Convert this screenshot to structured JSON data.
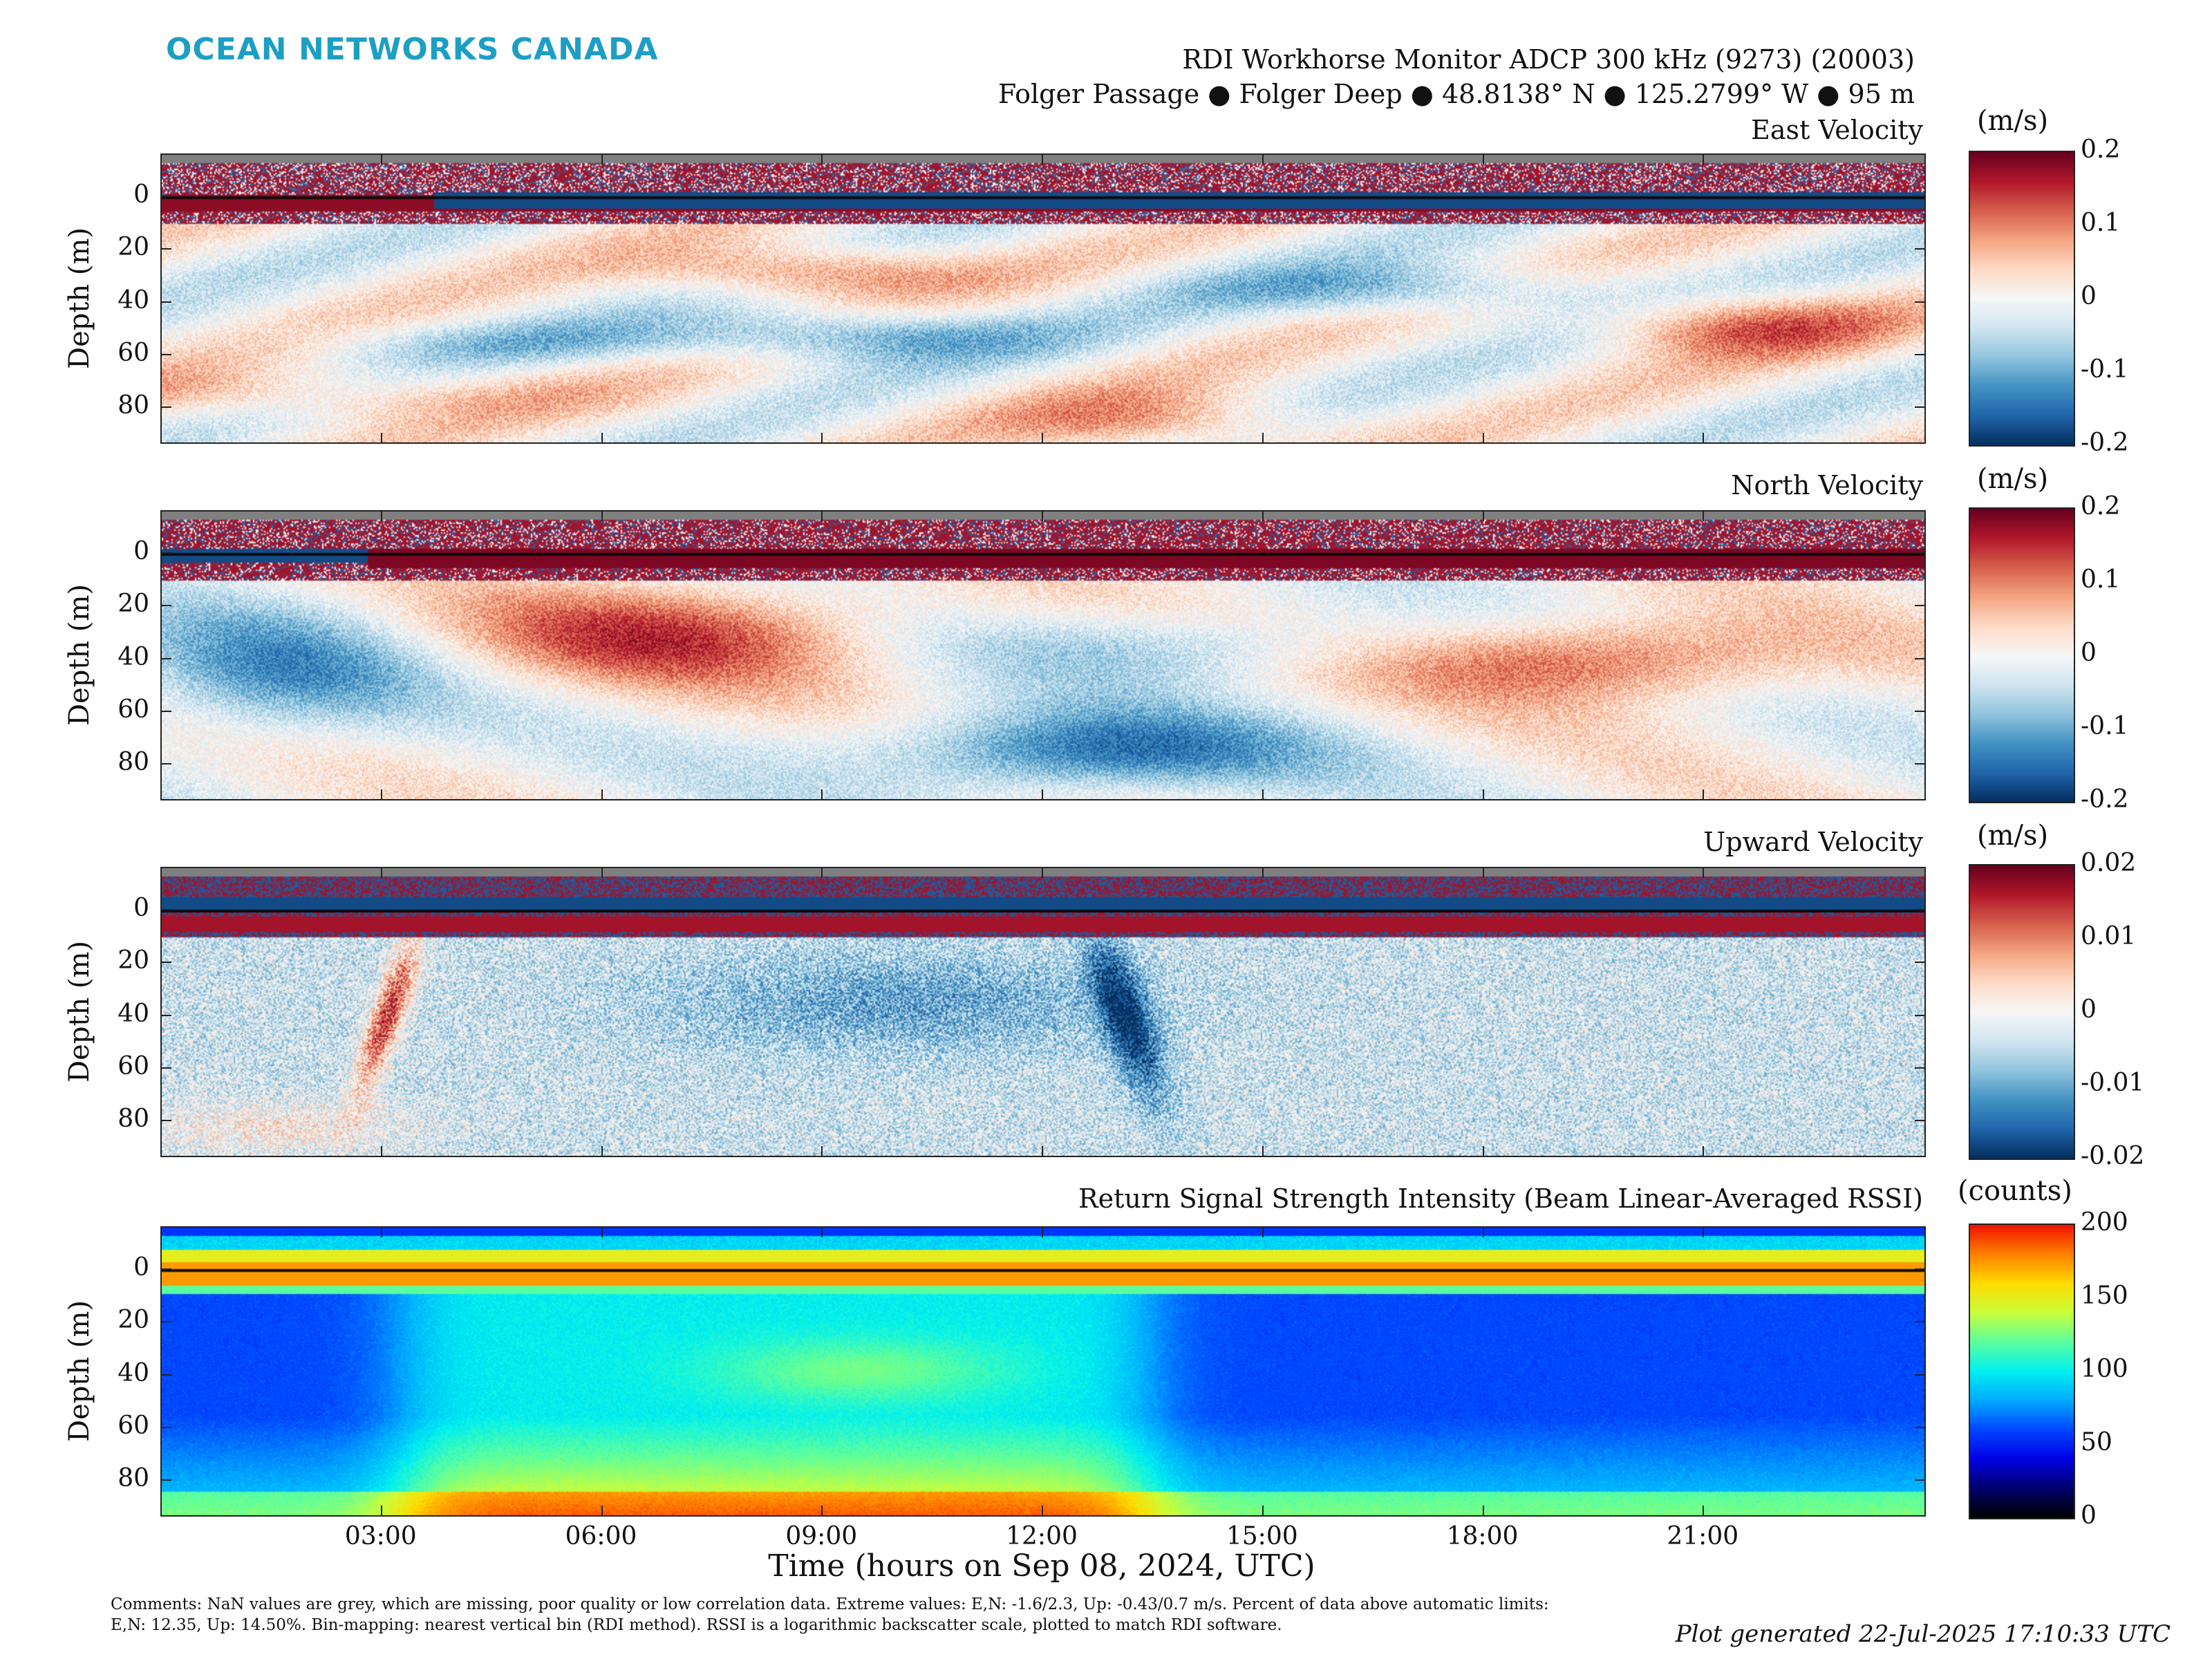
{
  "brand": "OCEAN NETWORKS CANADA",
  "header": {
    "line1": "RDI Workhorse Monitor ADCP 300 kHz (9273) (20003)",
    "line2": "Folger Passage ● Folger Deep ● 48.8138° N ● 125.2799° W ● 95 m"
  },
  "xlabel": "Time (hours on Sep 08, 2024, UTC)",
  "comments": "Comments: NaN values are grey, which are missing, poor quality or low correlation data. Extreme values: E,N: -1.6/2.3, Up: -0.43/0.7 m/s. Percent of data above automatic limits: E,N: 12.35, Up: 14.50%. Bin-mapping: nearest vertical bin (RDI method). RSSI is a logarithmic backscatter scale, plotted to match RDI software.",
  "generated": "Plot generated 22-Jul-2025 17:10:33 UTC",
  "colors": {
    "brand": "#1d9fc4",
    "nan_grey": "#808080"
  },
  "chart_data": [
    {
      "type": "heatmap",
      "title": "East Velocity",
      "ylabel": "Depth (m)",
      "units": "(m/s)",
      "colormap": "diverging red-blue",
      "clim": [
        -0.2,
        0.2
      ],
      "colorbar_ticks": [
        "0.2",
        "0.1",
        "0",
        "-0.1",
        "-0.2"
      ],
      "ylim": [
        -16,
        93
      ],
      "y_ticks": [
        "0",
        "20",
        "40",
        "60",
        "80"
      ],
      "x_ticks": [
        "03:00",
        "06:00",
        "09:00",
        "12:00",
        "15:00",
        "18:00",
        "21:00"
      ],
      "xlim_hours": [
        0,
        24
      ]
    },
    {
      "type": "heatmap",
      "title": "North Velocity",
      "ylabel": "Depth (m)",
      "units": "(m/s)",
      "colormap": "diverging red-blue",
      "clim": [
        -0.2,
        0.2
      ],
      "colorbar_ticks": [
        "0.2",
        "0.1",
        "0",
        "-0.1",
        "-0.2"
      ],
      "ylim": [
        -16,
        93
      ],
      "y_ticks": [
        "0",
        "20",
        "40",
        "60",
        "80"
      ],
      "x_ticks": [
        "03:00",
        "06:00",
        "09:00",
        "12:00",
        "15:00",
        "18:00",
        "21:00"
      ],
      "xlim_hours": [
        0,
        24
      ]
    },
    {
      "type": "heatmap",
      "title": "Upward Velocity",
      "ylabel": "Depth (m)",
      "units": "(m/s)",
      "colormap": "diverging red-blue",
      "clim": [
        -0.025,
        0.025
      ],
      "colorbar_ticks": [
        "0.02",
        "0.01",
        "0",
        "-0.01",
        "-0.02"
      ],
      "ylim": [
        -16,
        93
      ],
      "y_ticks": [
        "0",
        "20",
        "40",
        "60",
        "80"
      ],
      "x_ticks": [
        "03:00",
        "06:00",
        "09:00",
        "12:00",
        "15:00",
        "18:00",
        "21:00"
      ],
      "xlim_hours": [
        0,
        24
      ]
    },
    {
      "type": "heatmap",
      "title": "Return Signal Strength Intensity (Beam Linear-Averaged RSSI)",
      "ylabel": "Depth (m)",
      "units": "(counts)",
      "colormap": "jet",
      "clim": [
        0,
        200
      ],
      "colorbar_ticks": [
        "200",
        "150",
        "100",
        "50",
        "0"
      ],
      "ylim": [
        -16,
        93
      ],
      "y_ticks": [
        "0",
        "20",
        "40",
        "60",
        "80"
      ],
      "x_ticks": [
        "03:00",
        "06:00",
        "09:00",
        "12:00",
        "15:00",
        "18:00",
        "21:00"
      ],
      "xlim_hours": [
        0,
        24
      ]
    }
  ]
}
